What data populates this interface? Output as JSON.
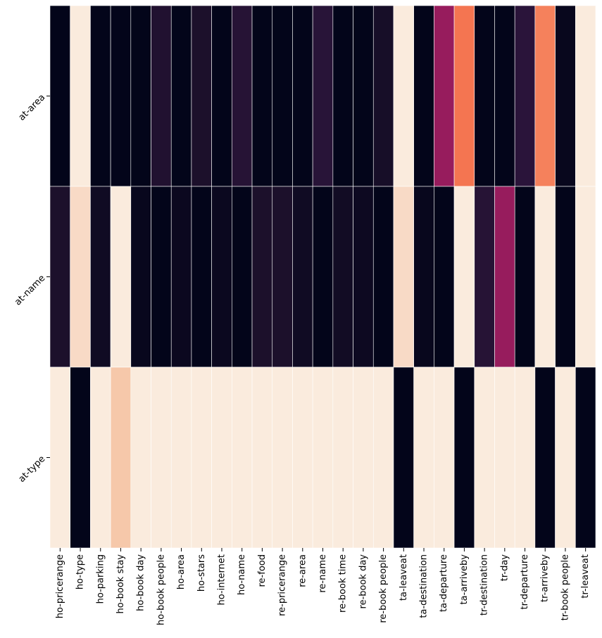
{
  "chart_data": {
    "type": "heatmap",
    "title": "",
    "xlabel": "",
    "ylabel": "",
    "rows": [
      "at-area",
      "at-name",
      "at-type"
    ],
    "columns": [
      "ho-pricerange",
      "ho-type",
      "ho-parking",
      "ho-book stay",
      "ho-book day",
      "ho-book people",
      "ho-area",
      "ho-stars",
      "ho-internet",
      "ho-name",
      "re-food",
      "re-pricerange",
      "re-area",
      "re-name",
      "re-book time",
      "re-book day",
      "re-book people",
      "ta-leaveat",
      "ta-destination",
      "ta-departure",
      "ta-arriveby",
      "tr-destination",
      "tr-day",
      "tr-departure",
      "tr-arriveby",
      "tr-book people",
      "tr-leaveat"
    ],
    "values": [
      [
        0.0,
        1.0,
        0.0,
        0.0,
        0.0,
        0.12,
        0.0,
        0.1,
        0.0,
        0.14,
        0.0,
        0.0,
        0.0,
        0.15,
        0.0,
        0.0,
        0.08,
        1.0,
        0.0,
        0.42,
        0.75,
        0.0,
        0.0,
        0.16,
        0.78,
        0.02,
        1.0
      ],
      [
        0.1,
        0.93,
        0.05,
        1.0,
        0.02,
        0.0,
        0.03,
        0.0,
        0.03,
        0.0,
        0.1,
        0.1,
        0.05,
        0.0,
        0.06,
        0.04,
        0.0,
        0.93,
        0.02,
        0.0,
        1.0,
        0.14,
        0.42,
        0.0,
        1.0,
        0.0,
        1.0
      ],
      [
        1.0,
        0.0,
        1.0,
        0.87,
        1.0,
        1.0,
        1.0,
        1.0,
        1.0,
        1.0,
        1.0,
        1.0,
        1.0,
        1.0,
        1.0,
        1.0,
        1.0,
        0.0,
        1.0,
        1.0,
        0.0,
        1.0,
        1.0,
        1.0,
        0.0,
        1.0,
        0.0
      ]
    ],
    "colormap": "rocket",
    "colorbar": false,
    "grid": true
  },
  "colors": {
    "gridline": "#ffffff",
    "background": "#ffffff",
    "text": "#000000",
    "tick": "#000000"
  }
}
